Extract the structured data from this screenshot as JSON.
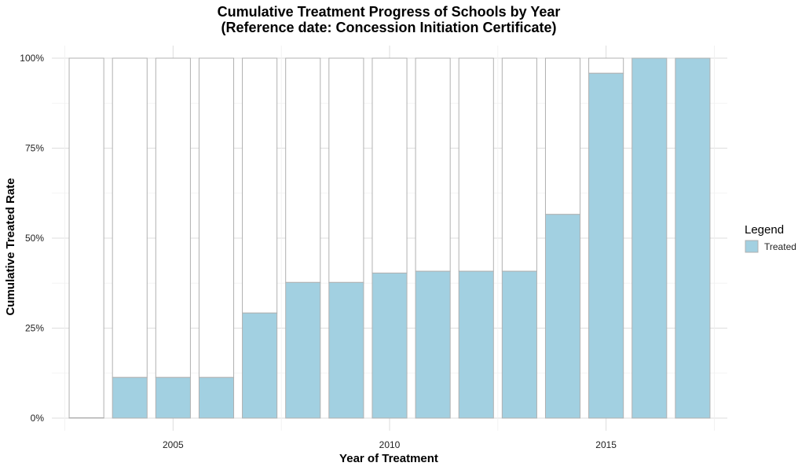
{
  "chart_data": {
    "type": "bar",
    "title": "Cumulative Treatment Progress of Schools by Year",
    "subtitle": "(Reference date: Concession Initiation Certificate)",
    "xlabel": "Year of Treatment",
    "ylabel": "Cumulative Treated Rate",
    "x": [
      2003,
      2004,
      2005,
      2006,
      2007,
      2008,
      2009,
      2010,
      2011,
      2012,
      2013,
      2014,
      2015,
      2016,
      2017
    ],
    "values": [
      0.0,
      0.113,
      0.113,
      0.113,
      0.292,
      0.377,
      0.377,
      0.403,
      0.408,
      0.408,
      0.408,
      0.566,
      0.958,
      1.0,
      1.0
    ],
    "total": 1.0,
    "xlim": [
      2002.2,
      2017.8
    ],
    "ylim": [
      0,
      1
    ],
    "x_ticks": [
      2005,
      2010,
      2015
    ],
    "y_ticks": [
      0,
      0.25,
      0.5,
      0.75,
      1.0
    ],
    "y_tick_labels": [
      "0%",
      "25%",
      "50%",
      "75%",
      "100%"
    ],
    "grid": true,
    "legend": {
      "title": "Legend",
      "position": "right",
      "items": [
        {
          "label": "Treated",
          "color": "#a2d0e1"
        }
      ]
    },
    "colors": {
      "treated": "#a2d0e1",
      "untreated": "#ffffff",
      "bar_border": "#b0b0b0",
      "grid": "#dedede"
    }
  }
}
